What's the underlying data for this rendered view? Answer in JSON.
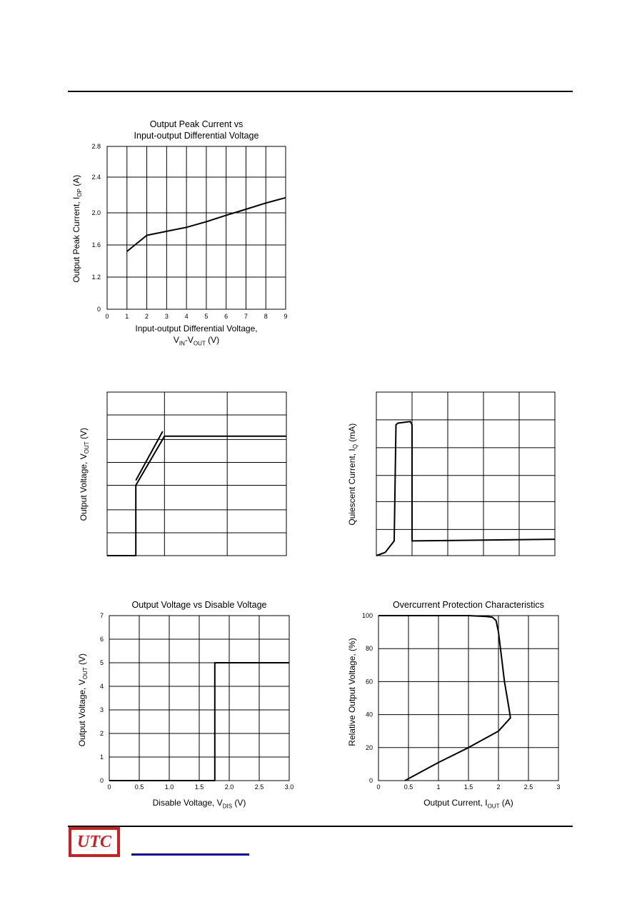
{
  "brand": {
    "logo_text": "UTC"
  },
  "chart_data": [
    {
      "id": "peak",
      "type": "line",
      "title_lines": [
        "Output Peak Current vs",
        "Input-output Differential Voltage"
      ],
      "ylabel": "Output Peak Current, I",
      "ylabel_sub": "OP",
      "ylabel_tail": " (A)",
      "xlabel_lines": [
        "Input-output Differential Voltage,",
        "V_IN-V_OUT (V)"
      ],
      "xlabel_line2": {
        "a": "V",
        "a_sub": "IN",
        "b": "-V",
        "b_sub": "OUT",
        "tail": " (V)"
      },
      "xlim": [
        0,
        9
      ],
      "ylim": [
        0,
        2.8
      ],
      "x_ticks": [
        "0",
        "1",
        "2",
        "3",
        "4",
        "5",
        "6",
        "7",
        "8",
        "9"
      ],
      "y_ticks": [
        "0",
        "1.2",
        "1.6",
        "2.0",
        "2.4",
        "2.8"
      ],
      "y_tick_values": [
        0,
        1.2,
        1.6,
        2.0,
        2.4,
        2.8
      ],
      "grid": true,
      "series": [
        {
          "x": [
            1,
            2,
            3,
            4,
            5,
            6,
            7,
            8,
            9
          ],
          "y": [
            1.52,
            1.72,
            1.77,
            1.82,
            1.89,
            1.97,
            2.04,
            2.11,
            2.17
          ]
        }
      ]
    },
    {
      "id": "vout_vin",
      "type": "line",
      "title_lines": [],
      "ylabel": "Output Voltage, V",
      "ylabel_sub": "OUT",
      "ylabel_tail": " (V)",
      "grid": true,
      "note": "no tick labels shown",
      "series": [
        {
          "x": [
            0,
            0.16,
            0.16,
            0.32,
            1.0
          ],
          "y": [
            0,
            0,
            0.43,
            0.73,
            0.73
          ]
        },
        {
          "x": [
            0.16,
            0.31
          ],
          "y": [
            0.46,
            0.76
          ]
        }
      ]
    },
    {
      "id": "iq",
      "type": "line",
      "title_lines": [],
      "ylabel": "Quiescent Current, I",
      "ylabel_sub": "Q",
      "ylabel_tail": " (mA)",
      "grid": true,
      "note": "no tick labels shown",
      "series": [
        {
          "x": [
            0,
            0.05,
            0.1,
            0.11,
            0.12,
            0.19,
            0.2,
            0.2,
            0.6,
            1.0
          ],
          "y": [
            0,
            0.02,
            0.09,
            0.8,
            0.81,
            0.82,
            0.8,
            0.09,
            0.095,
            0.1
          ]
        }
      ]
    },
    {
      "id": "disable",
      "type": "line",
      "title": "Output Voltage vs Disable Voltage",
      "ylabel": "Output Voltage, V",
      "ylabel_sub": "OUT",
      "ylabel_tail": " (V)",
      "xlabel": "Disable Voltage, V",
      "xlabel_sub": "DIS",
      "xlabel_tail": " (V)",
      "xlim": [
        0,
        3.0
      ],
      "ylim": [
        0,
        7
      ],
      "x_ticks": [
        "0",
        "0.5",
        "1.0",
        "1.5",
        "2.0",
        "2.5",
        "3.0"
      ],
      "y_ticks": [
        "0",
        "1",
        "2",
        "3",
        "4",
        "5",
        "6",
        "7"
      ],
      "grid": true,
      "series": [
        {
          "x": [
            0,
            1.76,
            1.76,
            3.0
          ],
          "y": [
            0,
            0,
            5,
            5
          ]
        }
      ]
    },
    {
      "id": "overcurrent",
      "type": "line",
      "title": "Overcurrent Protection Characteristics",
      "ylabel": "Relative Output Voltage, (%)",
      "xlabel": "Output Current, I",
      "xlabel_sub": "OUT",
      "xlabel_tail": " (A)",
      "xlim": [
        0,
        3
      ],
      "ylim": [
        0,
        100
      ],
      "x_ticks": [
        "0",
        "0.5",
        "1",
        "1.5",
        "2",
        "2.5",
        "3"
      ],
      "y_ticks": [
        "0",
        "20",
        "40",
        "60",
        "80",
        "100"
      ],
      "grid": true,
      "series": [
        {
          "x": [
            0,
            0.5,
            1.0,
            1.5,
            1.8,
            1.9,
            1.96,
            2.0,
            2.04,
            2.1,
            2.17,
            2.2,
            2.0,
            1.5,
            1.0,
            0.44
          ],
          "y": [
            100,
            100,
            100,
            100,
            99.5,
            99,
            97,
            90,
            78,
            60,
            45,
            38,
            30,
            20,
            11,
            0
          ]
        }
      ]
    }
  ]
}
